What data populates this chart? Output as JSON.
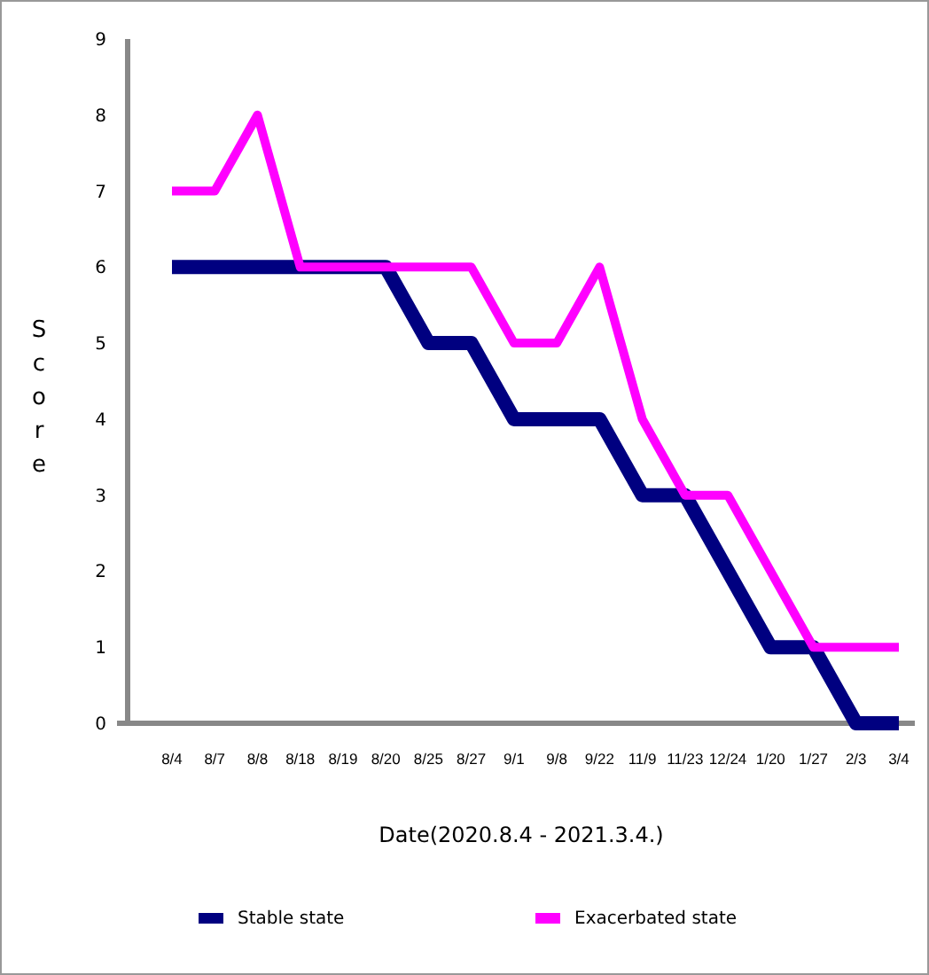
{
  "chart_data": {
    "type": "line",
    "xlabel": "Date(2020.8.4 - 2021.3.4.)",
    "ylabel": "Score",
    "categories": [
      "8/4",
      "8/7",
      "8/8",
      "8/18",
      "8/19",
      "8/20",
      "8/25",
      "8/27",
      "9/1",
      "9/8",
      "9/22",
      "11/9",
      "11/23",
      "12/24",
      "1/20",
      "1/27",
      "2/3",
      "3/4"
    ],
    "series": [
      {
        "name": "Stable state",
        "color": "#000080",
        "values": [
          6,
          6,
          6,
          6,
          6,
          6,
          5,
          5,
          4,
          4,
          4,
          3,
          3,
          2,
          1,
          1,
          0,
          0
        ]
      },
      {
        "name": "Exacerbated state",
        "color": "#ff00ff",
        "values": [
          7,
          7,
          8,
          6,
          6,
          6,
          6,
          6,
          5,
          5,
          6,
          4,
          3,
          3,
          2,
          1,
          1,
          1
        ]
      }
    ],
    "ylim": [
      0,
      9
    ],
    "yticks": [
      0,
      1,
      2,
      3,
      4,
      5,
      6,
      7,
      8,
      9
    ],
    "grid": false,
    "legend": "bottom",
    "marker": "none",
    "line_style": "solid"
  }
}
